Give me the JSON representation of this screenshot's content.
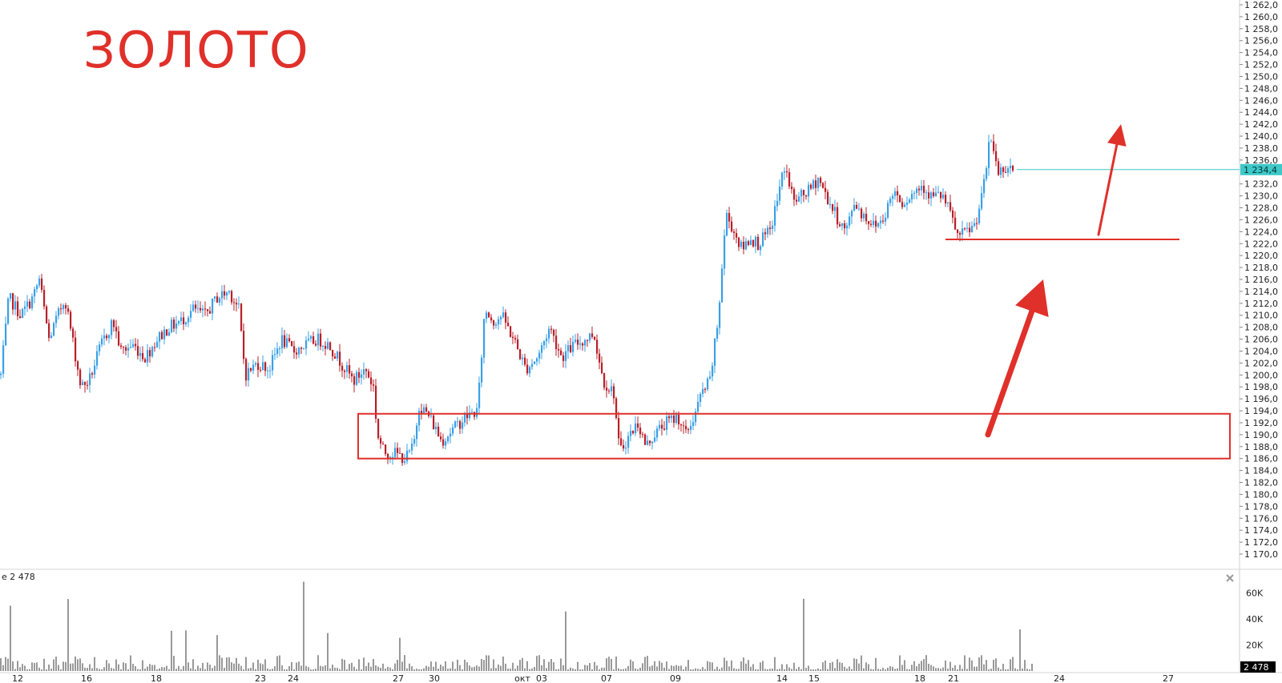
{
  "title": "ЗОЛОТО",
  "colors": {
    "up": "#3aa0e6",
    "down": "#b8202a",
    "price_line": "#3ec8c8",
    "annotation": "#e0302a",
    "volume": "#333333"
  },
  "chart_data": [
    {
      "type": "candlestick",
      "title": "ЗОЛОТО",
      "ylim": [
        1169,
        1263
      ],
      "y_ticks": [
        "1 262,0",
        "1 260,0",
        "1 258,0",
        "1 256,0",
        "1 254,0",
        "1 252,0",
        "1 250,0",
        "1 248,0",
        "1 246,0",
        "1 244,0",
        "1 242,0",
        "1 240,0",
        "1 238,0",
        "1 236,0",
        "1 232,0",
        "1 230,0",
        "1 228,0",
        "1 226,0",
        "1 224,0",
        "1 222,0",
        "1 220,0",
        "1 218,0",
        "1 216,0",
        "1 214,0",
        "1 212,0",
        "1 210,0",
        "1 208,0",
        "1 206,0",
        "1 204,0",
        "1 202,0",
        "1 200,0",
        "1 198,0",
        "1 196,0",
        "1 194,0",
        "1 192,0",
        "1 190,0",
        "1 188,0",
        "1 186,0",
        "1 184,0",
        "1 182,0",
        "1 180,0",
        "1 178,0",
        "1 176,0",
        "1 174,0",
        "1 172,0",
        "1 170,0"
      ],
      "last_price": 1234.4,
      "last_price_label": "1 234,4",
      "x_ticks": [
        "12",
        "16",
        "18",
        "23",
        "24",
        "27",
        "30",
        "окт",
        "03",
        "07",
        "09",
        "14",
        "15",
        "18",
        "21",
        "24",
        "27"
      ],
      "close_path": [
        [
          0,
          1200
        ],
        [
          10,
          1213
        ],
        [
          25,
          1210
        ],
        [
          40,
          1213
        ],
        [
          48,
          1216
        ],
        [
          60,
          1206
        ],
        [
          80,
          1213
        ],
        [
          100,
          1198
        ],
        [
          110,
          1199
        ],
        [
          125,
          1205
        ],
        [
          140,
          1209
        ],
        [
          150,
          1204
        ],
        [
          165,
          1205
        ],
        [
          180,
          1203
        ],
        [
          195,
          1206
        ],
        [
          210,
          1208
        ],
        [
          225,
          1209
        ],
        [
          240,
          1211
        ],
        [
          255,
          1210
        ],
        [
          270,
          1213
        ],
        [
          285,
          1214
        ],
        [
          297,
          1211
        ],
        [
          305,
          1200
        ],
        [
          320,
          1202
        ],
        [
          335,
          1201
        ],
        [
          350,
          1206
        ],
        [
          365,
          1204
        ],
        [
          380,
          1205
        ],
        [
          395,
          1206
        ],
        [
          410,
          1205
        ],
        [
          425,
          1202
        ],
        [
          440,
          1199
        ],
        [
          455,
          1201
        ],
        [
          465,
          1198
        ],
        [
          470,
          1190
        ],
        [
          478,
          1187
        ],
        [
          490,
          1187
        ],
        [
          505,
          1186
        ],
        [
          515,
          1188
        ],
        [
          522,
          1195
        ],
        [
          535,
          1193
        ],
        [
          550,
          1189
        ],
        [
          565,
          1191
        ],
        [
          580,
          1193
        ],
        [
          595,
          1194
        ],
        [
          604,
          1211
        ],
        [
          615,
          1209
        ],
        [
          625,
          1210
        ],
        [
          640,
          1206
        ],
        [
          655,
          1201
        ],
        [
          670,
          1203
        ],
        [
          685,
          1208
        ],
        [
          700,
          1203
        ],
        [
          715,
          1205
        ],
        [
          730,
          1206
        ],
        [
          740,
          1207
        ],
        [
          752,
          1199
        ],
        [
          765,
          1197
        ],
        [
          772,
          1187
        ],
        [
          785,
          1190
        ],
        [
          795,
          1192
        ],
        [
          805,
          1188
        ],
        [
          815,
          1190
        ],
        [
          830,
          1192
        ],
        [
          845,
          1193
        ],
        [
          855,
          1190
        ],
        [
          865,
          1193
        ],
        [
          875,
          1197
        ],
        [
          885,
          1199
        ],
        [
          895,
          1209
        ],
        [
          905,
          1227
        ],
        [
          915,
          1224
        ],
        [
          925,
          1221
        ],
        [
          935,
          1223
        ],
        [
          945,
          1222
        ],
        [
          960,
          1224
        ],
        [
          970,
          1230
        ],
        [
          978,
          1235
        ],
        [
          990,
          1229
        ],
        [
          1000,
          1230
        ],
        [
          1010,
          1231
        ],
        [
          1020,
          1233
        ],
        [
          1030,
          1230
        ],
        [
          1045,
          1226
        ],
        [
          1055,
          1224
        ],
        [
          1065,
          1229
        ],
        [
          1075,
          1227
        ],
        [
          1090,
          1225
        ],
        [
          1100,
          1226
        ],
        [
          1115,
          1231
        ],
        [
          1125,
          1229
        ],
        [
          1135,
          1230
        ],
        [
          1150,
          1232
        ],
        [
          1160,
          1230
        ],
        [
          1175,
          1230
        ],
        [
          1185,
          1227
        ],
        [
          1195,
          1223
        ],
        [
          1205,
          1224
        ],
        [
          1215,
          1225
        ],
        [
          1225,
          1230
        ],
        [
          1235,
          1240
        ],
        [
          1245,
          1234
        ],
        [
          1255,
          1235
        ],
        [
          1265,
          1234.4
        ]
      ],
      "volume_panel": {
        "label": "e 2 478",
        "y_ticks": [
          "60K",
          "40K",
          "20K"
        ],
        "ylim": [
          0,
          75000
        ],
        "last_label": "2 478"
      },
      "annotations": [
        {
          "type": "rectangle",
          "price_low": 1186,
          "price_high": 1193.5,
          "x_start": 447,
          "x_end": 1535
        },
        {
          "type": "horizontal_line",
          "price": 1222.7,
          "x_start": 1180,
          "x_end": 1472
        },
        {
          "type": "arrow",
          "from": [
            1233,
            1190
          ],
          "to": [
            1302,
            1216
          ]
        },
        {
          "type": "arrow",
          "from": [
            1371,
            1223.5
          ],
          "to": [
            1399,
            1242
          ]
        }
      ]
    }
  ]
}
